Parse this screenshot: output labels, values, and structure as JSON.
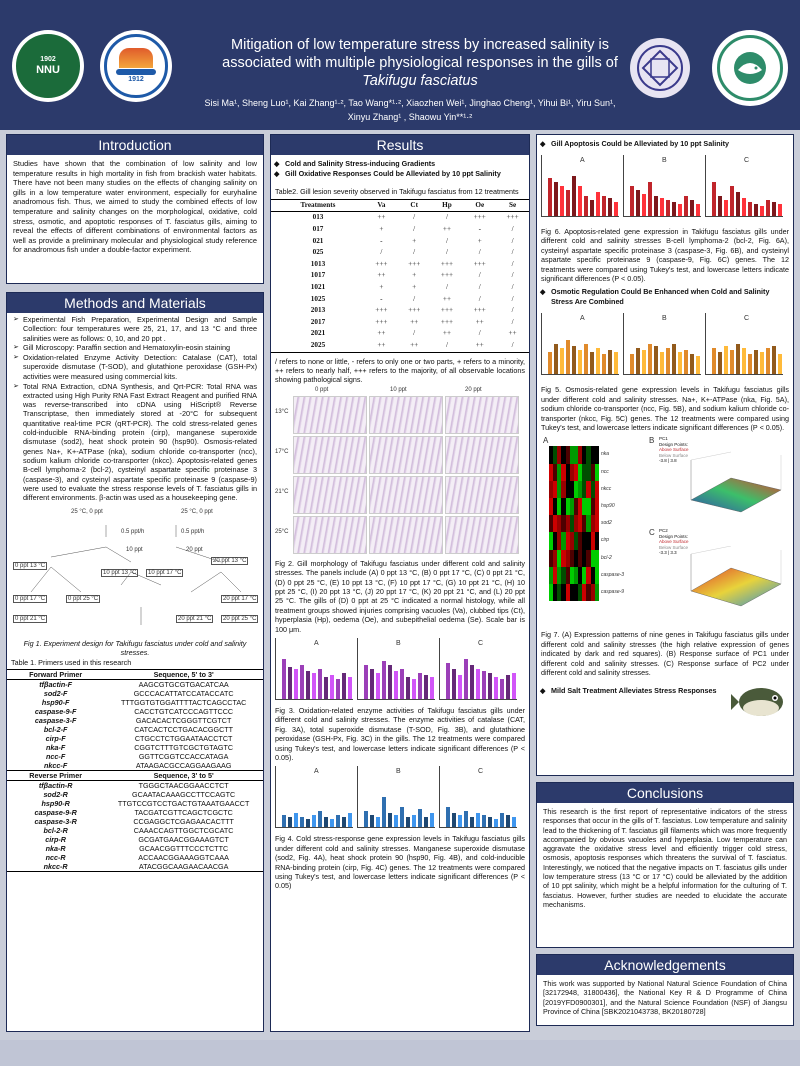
{
  "header": {
    "title_line1": "Mitigation of low temperature stress by increased salinity is",
    "title_line2": "associated with multiple physiological responses in the gills of",
    "title_species": "Takifugu fasciatus",
    "authors_line1": "Sisi Ma¹, Sheng Luo¹, Kai Zhang¹·², Tao Wang*¹·², Xiaozhen Wei¹, Jinghao Cheng¹, Yihui Bi¹, Yiru Sun¹,",
    "authors_line2": "Xinyu Zhang¹ ,   Shaowu Yin**¹·²",
    "logo1_text": "南京师范大学 1902 NNU NANJING NORMAL UNIVERSITY",
    "logo2_text": "上海海洋大学 1912 SHANGHAI OCEAN UNIVERSITY",
    "logo1_year": "1902",
    "logo1_abbr": "NNU",
    "logo2_year": "1912"
  },
  "introduction": {
    "heading": "Introduction",
    "text": "Studies have shown that the combination of low salinity and low temperature results in high mortality in fish from brackish water habitats. There have not been many studies on the effects of changing salinity on gills in a low temperature water environment, especially for euryhaline anadromous fish. Thus, we aimed to study the combined effects of low temperature and salinity changes on the morphological, oxidative, cold stress, osmotic, and apoptotic responses of T. fasciatus gills, aiming to reveal the effects of different combinations of environmental factors as well as provide a preliminary molecular and physiological study reference for anadromous fish under a double-factor experiment."
  },
  "methods": {
    "heading": "Methods and Materials",
    "bullets": [
      "Experimental Fish Preparation, Experimental Design and Sample Collection: four temperatures were 25, 21, 17, and 13 °C and three salinities were as follows: 0, 10, and 20 ppt .",
      "Gill Microscopy: Paraffin section and Hematoxylin-eosin staining",
      "Oxidation-related Enzyme Activity Detection: Catalase (CAT), total superoxide dismutase (T-SOD), and glutathione peroxidase (GSH-Px) activities were measured using commercial kits.",
      "Total RNA Extraction, cDNA Synthesis, and Qrt-PCR: Total RNA was extracted using High Purity RNA Fast Extract Reagent and purified RNA was reverse-transcribed into cDNA using HiScript® Reverse Transcriptase, then immediately stored at -20°C for subsequent quantitative real-time PCR (qRT-PCR). The cold stress-related genes cold-inducible RNA-binding protein (cirp), manganese superoxide dismutase (sod2), heat shock protein 90 (hsp90). Osmosis-related genes Na+, K+-ATPase (nka), sodium chloride co-transporter (ncc), sodium kalium chloride co-transporter (nkcc). Apoptosis-related genes B-cell lymphoma-2 (bcl-2), cysteinyl aspartate specific proteinase 3 (caspase-3), and cysteinyl aspartate specific proteinase 9 (caspase-9) were used to evaluate the stress response levels of T. fasciatus gills in different environments. β-actin was used as a housekeeping gene."
    ],
    "fig1_caption": "Fig 1. Experiment design for Takifugu fasciatus under cold and salinity stresses.",
    "design_nodes": [
      "25 °C, 0 ppt",
      "25 °C, 0 ppt",
      "0.5 ppt/h",
      "0.5 ppt/h",
      "10 ppt",
      "20 ppt",
      "0 ppt 13 °C",
      "0 ppt 17 °C",
      "0 ppt 21 °C",
      "0 ppt 25 °C",
      "10 ppt 13 °C",
      "10 ppt 17 °C",
      "20 ppt 13 °C",
      "20 ppt 17 °C",
      "20 ppt 21 °C",
      "20 ppt 25 °C"
    ],
    "table1_caption": "Table 1. Primers used in this research",
    "forward_header": [
      "Forward Primer",
      "Sequence, 5' to 3'"
    ],
    "forward": [
      [
        "tfβactin-F",
        "AAGCGTGCGTGACATCAA"
      ],
      [
        "sod2-F",
        "GCCCACATTATCCATACCATC"
      ],
      [
        "hsp90-F",
        "TTTGGTGTGGATTTTACTCAGCCTAC"
      ],
      [
        "caspase-9-F",
        "CACCTGTCATCCCAGTTCCC"
      ],
      [
        "caspase-3-F",
        "GACACACTCGGGTTCGTCT"
      ],
      [
        "bcl-2-F",
        "CATCACTCCTGACACGGCTT"
      ],
      [
        "cirp-F",
        "CTGCCTCTGGAATAACCTCT"
      ],
      [
        "nka-F",
        "CGGTCTTTGTCGCTGTAGTC"
      ],
      [
        "ncc-F",
        "GGTTCGGTCCACCATAGA"
      ],
      [
        "nkcc-F",
        "ATAAGACGCCAGGAAGAAG"
      ]
    ],
    "reverse_header": [
      "Reverse Primer",
      "Sequence, 3' to 5'"
    ],
    "reverse": [
      [
        "tfβactin-R",
        "TGGGCTAACGGAACCTCT"
      ],
      [
        "sod2-R",
        "GCAATACAAAGCCTTCCAGTC"
      ],
      [
        "hsp90-R",
        "TTGTCCGTCCTGACTGTAAATGAACCT"
      ],
      [
        "caspase-9-R",
        "TACGATCGTTCAGCTCGCTC"
      ],
      [
        "caspase-3-R",
        "CCGAGGCTCGAGAACACTTT"
      ],
      [
        "bcl-2-R",
        "CAAACCAGTTGGCTCGCATC"
      ],
      [
        "cirp-R",
        "GCGATGAACGGAAAGTCT"
      ],
      [
        "nka-R",
        "GCAACGGTTTCCCTCTTC"
      ],
      [
        "ncc-R",
        "ACCAACGGAAAGGTCAAA"
      ],
      [
        "nkcc-R",
        "ATACGGCAAGAACAACGA"
      ]
    ]
  },
  "results": {
    "heading": "Results",
    "sub1": "Cold and Salinity Stress-inducing Gradients",
    "sub2": "Gill Oxidative Responses Could be Alleviated by 10 ppt Salinity",
    "table2_caption": "Table2. Gill lesion severity observed in Takifugu fasciatus from 12 treatments",
    "table2_header": [
      "Treatments",
      "Va",
      "Ct",
      "Hp",
      "Oe",
      "Se"
    ],
    "table2_rows": [
      [
        "013",
        "++",
        "/",
        "/",
        "+++",
        "+++"
      ],
      [
        "017",
        "+",
        "/",
        "++",
        "-",
        "/"
      ],
      [
        "021",
        "-",
        "+",
        "/",
        "+",
        "/"
      ],
      [
        "025",
        "/",
        "/",
        "/",
        "/",
        "/"
      ],
      [
        "1013",
        "+++",
        "+++",
        "+++",
        "+++",
        "/"
      ],
      [
        "1017",
        "++",
        "+",
        "+++",
        "/",
        "/"
      ],
      [
        "1021",
        "+",
        "+",
        "/",
        "/",
        "/"
      ],
      [
        "1025",
        "-",
        "/",
        "++",
        "/",
        "/"
      ],
      [
        "2013",
        "+++",
        "+++",
        "+++",
        "+++",
        "/"
      ],
      [
        "2017",
        "+++",
        "++",
        "+++",
        "++",
        "/"
      ],
      [
        "2021",
        "++",
        "/",
        "++",
        "/",
        "++"
      ],
      [
        "2025",
        "++",
        "++",
        "/",
        "++",
        "/"
      ]
    ],
    "table2_note": "/ refers to none or little, - refers to only one or two parts, + refers to a minority, ++ refers to nearly half, +++ refers to the majority, of all observable locations showing pathological signs.",
    "fig2_cols": [
      "0 ppt",
      "10 ppt",
      "20 ppt"
    ],
    "fig2_rows": [
      "13°C",
      "17°C",
      "21°C",
      "25°C"
    ],
    "fig2_caption": "Fig 2. Gill morphology of Takifugu fasciatus under different cold and salinity stresses. The panels include (A) 0 ppt 13 °C, (B) 0 ppt 17 °C, (C) 0 ppt 21 °C, (D) 0 ppt 25 °C, (E) 10 ppt 13 °C, (F) 10 ppt 17 °C, (G) 10 ppt 21 °C, (H) 10 ppt 25 °C, (I) 20 ppt 13 °C, (J) 20 ppt 17 °C, (K) 20 ppt 21 °C, and (L) 20 ppt 25 °C. The gills of (D) 0 ppt at 25 °C indicated a normal histology, while all treatment groups showed injuries comprising vacuoles (Va), clubbed tips (Ct), hyperplasia (Hp), oedema (Oe), and subepithelial oedema (Se). Scale bar is 100 μm.",
    "fig3_caption": "Fig 3. Oxidation-related enzyme activities of Takifugu fasciatus gills under different cold and salinity stresses. The enzyme activities of catalase (CAT, Fig. 3A), total superoxide dismutase (T-SOD, Fig. 3B), and glutathione peroxidase (GSH-Px, Fig. 3C) in the gills. The 12 treatments were compared using Tukey's test, and lowercase letters indicate significant differences (P < 0.05).",
    "fig4_caption": "Fig 4. Cold stress-response gene expression levels in Takifugu fasciatus gills under different cold and salinity stresses. Manganese superoxide dismutase (sod2, Fig. 4A), heat shock protein 90 (hsp90, Fig. 4B), and cold-inducible RNA-binding protein (cirp, Fig. 4C) genes. The 12 treatments were compared using Tukey's test, and lowercase letters indicate significant differences (P < 0.05)",
    "panel_letters": [
      "A",
      "B",
      "C"
    ]
  },
  "right": {
    "sub3": "Gill Apoptosis Could be Alleviated by 10 ppt Salinity",
    "fig6_caption": "Fig 6. Apoptosis-related gene expression in Takifugu fasciatus gills under different cold and salinity stresses B-cell lymphoma-2 (bcl-2, Fig. 6A), cysteinyl aspartate specific proteinase 3 (caspase-3, Fig. 6B), and cysteinyl aspartate specific proteinase 9 (caspase-9, Fig. 6C) genes. The 12 treatments were compared using Tukey's test, and lowercase letters indicate significant differences (P < 0.05).",
    "sub4": "Osmotic Regulation Could Be Enhanced when Cold and Salinity Stress Are Combined",
    "fig5_caption": "Fig 5. Osmosis-related gene expression levels in Takifugu fasciatus gills under different cold and salinity stresses. Na+, K+-ATPase (nka, Fig. 5A), sodium chloride co-transporter (ncc, Fig. 5B), and sodium kalium chloride co-transporter (nkcc, Fig. 5C) genes. The 12 treatments were compared using Tukey's test, and lowercase letters indicate significant differences (P < 0.05).",
    "fig7_caption": "Fig 7. (A) Expression patterns of nine genes in Takifugu fasciatus gills under different cold and salinity stresses (the high relative expression of genes indicated by dark and red squares). (B) Response surface of PC1 under different cold and salinity stresses. (C) Response surface of PC2 under different cold and salinity stresses.",
    "sub5": "Mild Salt Treatment Alleviates Stress Responses",
    "heatmap_genes": [
      "nka",
      "ncc",
      "nkcc",
      "hsp90",
      "sod2",
      "cirp",
      "bcl-2",
      "caspase-3",
      "caspase-9"
    ],
    "fig7_labels": [
      "A",
      "B",
      "C"
    ],
    "pc1_legend": [
      "PC1",
      "Design Points:",
      "Above Surface",
      "Below Surface",
      "-3.8 | 3.8"
    ],
    "pc2_legend": [
      "PC2",
      "Design Points:",
      "Above Surface",
      "Below Surface",
      "-3.3 | 3.3"
    ],
    "conclusions_heading": "Conclusions",
    "conclusions_text": "This research is the first report of representative indicators of the stress responses that occur in the gills of T. fasciatus. Low temperature and salinity lead to the thickening of T. fasciatus gill filaments which was more frequently accompanied by obvious vacuoles and hyperplasia. Low temperature can aggravate the oxidative stress level and efficiently trigger cold stress, osmosis, apoptosis responses which threatens the survival of T. fasciatus. Interestingly, we noticed that the negative impacts on T. fasciatus gills under low temperature stress (13 °C or 17 °C) could be alleviated by the addition of 10 ppt salinity, which might be a helpful information for the culturing of T. fasciatus. However, further studies are needed to elucidate the accurate mechanisms.",
    "ack_heading": "Acknowledgements",
    "ack_text": "This work was supported by National Natural Science Foundation of China [32172948, 31800436], the National Key R & D Programme of China [2019YFD0900301], and the Natural Science Foundation (NSF) of Jiangsu Province of China [SBK2021043738, BK20180728]"
  },
  "colors": {
    "header_bg": "#2c3a6b",
    "bar_purple": "#9b3fb8",
    "bar_red": "#c0252b",
    "bar_orange": "#e08a2b",
    "bar_blue": "#2f6fb0"
  }
}
